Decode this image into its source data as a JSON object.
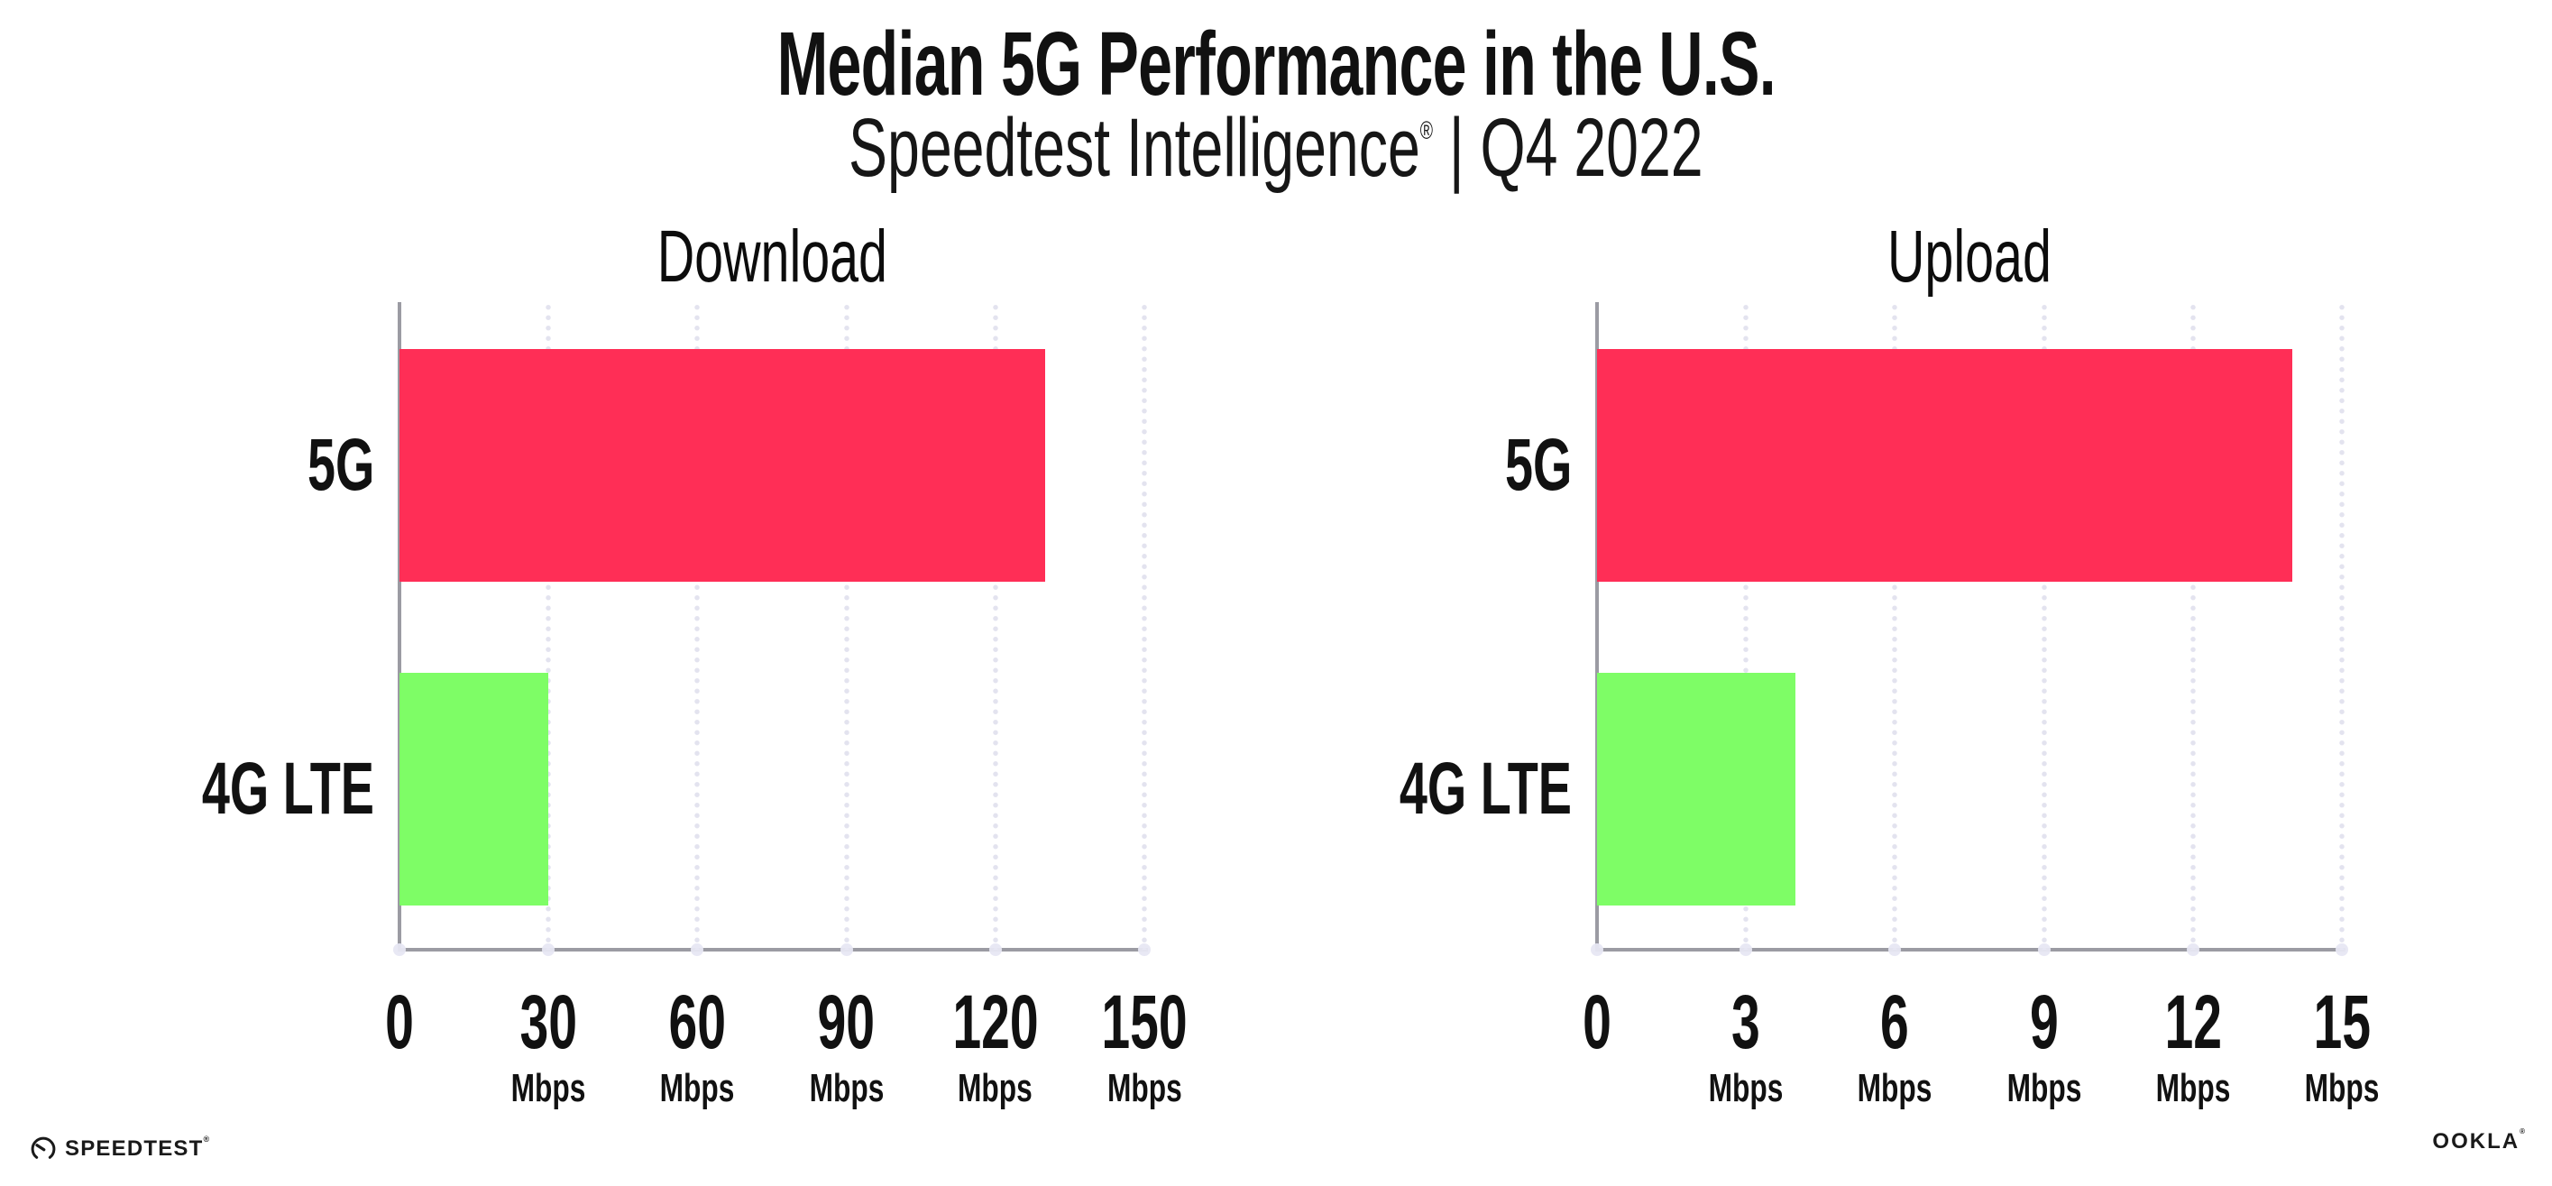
{
  "header": {
    "title": "Median 5G Performance in the U.S.",
    "subtitle_brand": "Speedtest Intelligence",
    "subtitle_trademark": "®",
    "subtitle_rest": " | Q4 2022"
  },
  "chart_data": [
    {
      "type": "bar",
      "orientation": "horizontal",
      "title": "Download",
      "categories": [
        "5G",
        "4G LTE"
      ],
      "values": [
        130,
        30
      ],
      "unit": "Mbps",
      "bar_colors": [
        "#FF2E56",
        "#7EFD66"
      ],
      "xlim": [
        0,
        150
      ],
      "xticks": [
        0,
        30,
        60,
        90,
        120,
        150
      ],
      "grid": "dotted-vertical",
      "legend": "none"
    },
    {
      "type": "bar",
      "orientation": "horizontal",
      "title": "Upload",
      "categories": [
        "5G",
        "4G LTE"
      ],
      "values": [
        14,
        4
      ],
      "unit": "Mbps",
      "bar_colors": [
        "#FF2E56",
        "#7EFD66"
      ],
      "xlim": [
        0,
        15
      ],
      "xticks": [
        0,
        3,
        6,
        9,
        12,
        15
      ],
      "grid": "dotted-vertical",
      "legend": "none"
    }
  ],
  "footer": {
    "speedtest_label": "SPEEDTEST",
    "speedtest_trademark": "®",
    "ookla_label": "OOKLA",
    "ookla_trademark": "®"
  },
  "colors": {
    "bar_5g": "#FF2E56",
    "bar_4g_lte": "#7EFD66",
    "axis_line": "#9B9BA3",
    "grid_dot": "#E3E3EF",
    "text": "#111111"
  }
}
